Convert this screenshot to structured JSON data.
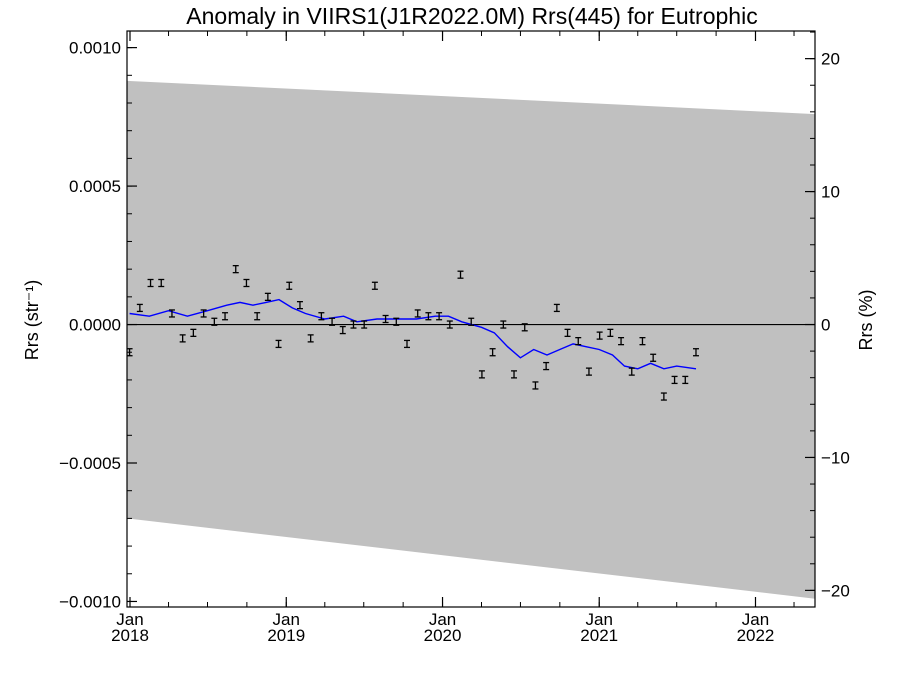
{
  "chart_data": {
    "type": "line",
    "title": "Anomaly in VIIRS1(J1R2022.0M) Rrs(445) for Eutrophic",
    "ylabel_left": "Rrs (str⁻¹)",
    "ylabel_right": "Rrs (%)",
    "xlabel": "",
    "xlim": [
      "2017-12-25",
      "2022-05-20"
    ],
    "ylim": [
      -0.00102,
      0.00106
    ],
    "ylim_right_pct": [
      -21.25,
      22.08
    ],
    "y_ticks": [
      {
        "v": 0.001,
        "label": "0.0010"
      },
      {
        "v": 0.0005,
        "label": "0.0005"
      },
      {
        "v": 0.0,
        "label": "0.0000"
      },
      {
        "v": -0.0005,
        "label": "−0.0005"
      },
      {
        "v": -0.001,
        "label": "−0.0010"
      }
    ],
    "y_right_ticks": [
      {
        "v": 20,
        "label": "20"
      },
      {
        "v": 10,
        "label": "10"
      },
      {
        "v": 0,
        "label": "0"
      },
      {
        "v": -10,
        "label": "−10"
      },
      {
        "v": -20,
        "label": "−20"
      }
    ],
    "x_ticks": [
      {
        "date": "2018-01-01",
        "line1": "Jan",
        "line2": "2018"
      },
      {
        "date": "2019-01-01",
        "line1": "Jan",
        "line2": "2019"
      },
      {
        "date": "2020-01-01",
        "line1": "Jan",
        "line2": "2020"
      },
      {
        "date": "2021-01-01",
        "line1": "Jan",
        "line2": "2021"
      },
      {
        "date": "2022-01-01",
        "line1": "Jan",
        "line2": "2022"
      }
    ],
    "uncertainty_band": {
      "upper": [
        [
          "2017-12-25",
          0.00088
        ],
        [
          "2022-05-20",
          0.00076
        ]
      ],
      "lower": [
        [
          "2017-12-25",
          -0.0007
        ],
        [
          "2022-05-20",
          -0.00099
        ]
      ],
      "color": "#c0c0c0"
    },
    "zero_line": 0.0,
    "series": [
      {
        "style": "errorbar",
        "color": "#000000",
        "points": [
          [
            "2017-12-31",
            -0.0001
          ],
          [
            "2018-01-24",
            6e-05
          ],
          [
            "2018-02-18",
            0.00015
          ],
          [
            "2018-03-15",
            0.00015
          ],
          [
            "2018-04-09",
            4e-05
          ],
          [
            "2018-05-04",
            -5e-05
          ],
          [
            "2018-05-29",
            -3e-05
          ],
          [
            "2018-06-22",
            4e-05
          ],
          [
            "2018-07-17",
            1e-05
          ],
          [
            "2018-08-11",
            3e-05
          ],
          [
            "2018-09-05",
            0.0002
          ],
          [
            "2018-09-30",
            0.00015
          ],
          [
            "2018-10-25",
            3e-05
          ],
          [
            "2018-11-19",
            0.0001
          ],
          [
            "2018-12-14",
            -7e-05
          ],
          [
            "2019-01-08",
            0.00014
          ],
          [
            "2019-02-02",
            7e-05
          ],
          [
            "2019-02-27",
            -5e-05
          ],
          [
            "2019-03-24",
            3e-05
          ],
          [
            "2019-04-18",
            1e-05
          ],
          [
            "2019-05-13",
            -2e-05
          ],
          [
            "2019-06-07",
            0.0
          ],
          [
            "2019-07-02",
            0.0
          ],
          [
            "2019-07-27",
            0.00014
          ],
          [
            "2019-08-21",
            2e-05
          ],
          [
            "2019-09-15",
            1e-05
          ],
          [
            "2019-10-10",
            -7e-05
          ],
          [
            "2019-11-04",
            4e-05
          ],
          [
            "2019-11-29",
            3e-05
          ],
          [
            "2019-12-24",
            3e-05
          ],
          [
            "2020-01-18",
            0.0
          ],
          [
            "2020-02-12",
            0.00018
          ],
          [
            "2020-03-08",
            1e-05
          ],
          [
            "2020-04-02",
            -0.00018
          ],
          [
            "2020-04-27",
            -0.0001
          ],
          [
            "2020-05-22",
            0.0
          ],
          [
            "2020-06-16",
            -0.00018
          ],
          [
            "2020-07-11",
            -1e-05
          ],
          [
            "2020-08-05",
            -0.00022
          ],
          [
            "2020-08-30",
            -0.00015
          ],
          [
            "2020-09-24",
            6e-05
          ],
          [
            "2020-10-19",
            -3e-05
          ],
          [
            "2020-11-13",
            -6e-05
          ],
          [
            "2020-12-08",
            -0.00017
          ],
          [
            "2021-01-02",
            -4e-05
          ],
          [
            "2021-01-27",
            -3e-05
          ],
          [
            "2021-02-21",
            -6e-05
          ],
          [
            "2021-03-18",
            -0.00017
          ],
          [
            "2021-04-12",
            -6e-05
          ],
          [
            "2021-05-07",
            -0.00012
          ],
          [
            "2021-06-01",
            -0.00026
          ],
          [
            "2021-06-26",
            -0.0002
          ],
          [
            "2021-07-21",
            -0.0002
          ],
          [
            "2021-08-15",
            -0.0001
          ]
        ]
      },
      {
        "style": "line",
        "color": "#0000ff",
        "points": [
          [
            "2017-12-31",
            4e-05
          ],
          [
            "2018-02-15",
            3e-05
          ],
          [
            "2018-04-01",
            5e-05
          ],
          [
            "2018-05-15",
            3e-05
          ],
          [
            "2018-07-01",
            5e-05
          ],
          [
            "2018-08-15",
            7e-05
          ],
          [
            "2018-09-15",
            8e-05
          ],
          [
            "2018-10-15",
            7e-05
          ],
          [
            "2018-11-15",
            8e-05
          ],
          [
            "2018-12-15",
            9e-05
          ],
          [
            "2019-01-15",
            6e-05
          ],
          [
            "2019-02-15",
            4e-05
          ],
          [
            "2019-04-01",
            2e-05
          ],
          [
            "2019-05-15",
            3e-05
          ],
          [
            "2019-06-15",
            1e-05
          ],
          [
            "2019-08-01",
            2e-05
          ],
          [
            "2019-09-15",
            2e-05
          ],
          [
            "2019-11-01",
            2e-05
          ],
          [
            "2019-12-15",
            3e-05
          ],
          [
            "2020-01-15",
            3e-05
          ],
          [
            "2020-02-15",
            1e-05
          ],
          [
            "2020-04-01",
            -1e-05
          ],
          [
            "2020-05-01",
            -3e-05
          ],
          [
            "2020-06-01",
            -8e-05
          ],
          [
            "2020-07-01",
            -0.00012
          ],
          [
            "2020-08-01",
            -9e-05
          ],
          [
            "2020-09-01",
            -0.00011
          ],
          [
            "2020-10-01",
            -9e-05
          ],
          [
            "2020-11-01",
            -7e-05
          ],
          [
            "2020-12-01",
            -8e-05
          ],
          [
            "2021-01-01",
            -9e-05
          ],
          [
            "2021-02-01",
            -0.00011
          ],
          [
            "2021-03-01",
            -0.00015
          ],
          [
            "2021-04-01",
            -0.00016
          ],
          [
            "2021-05-01",
            -0.00014
          ],
          [
            "2021-06-01",
            -0.00016
          ],
          [
            "2021-07-01",
            -0.00015
          ],
          [
            "2021-08-15",
            -0.00016
          ]
        ]
      }
    ]
  }
}
